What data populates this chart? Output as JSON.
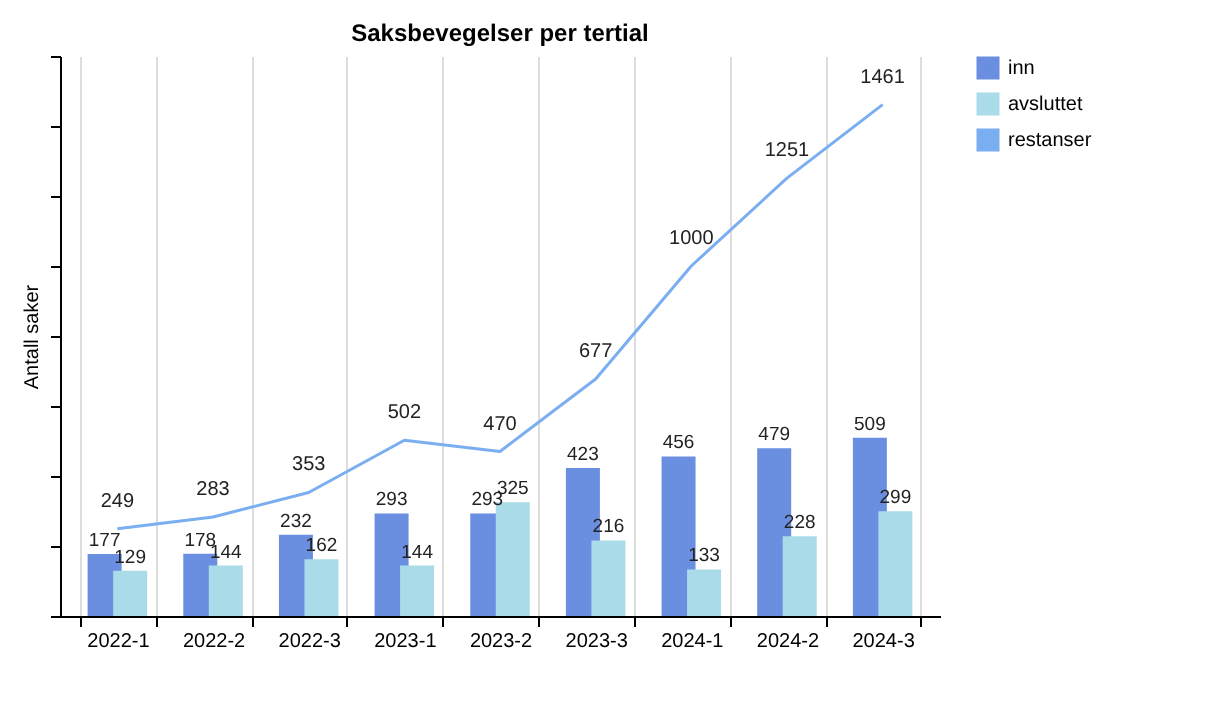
{
  "chart_data": {
    "type": "bar",
    "title": "Saksbevegelser per tertial",
    "ylabel": "Antall saker",
    "categories": [
      "2022-1",
      "2022-2",
      "2022-3",
      "2023-1",
      "2023-2",
      "2023-3",
      "2024-1",
      "2024-2",
      "2024-3"
    ],
    "series": [
      {
        "name": "inn",
        "color": "#6a8ee0",
        "values": [
          177,
          178,
          232,
          293,
          293,
          423,
          456,
          479,
          509
        ]
      },
      {
        "name": "avsluttet",
        "color": "#a9dbe8",
        "values": [
          129,
          144,
          162,
          144,
          325,
          216,
          133,
          228,
          299
        ]
      },
      {
        "name": "restanser",
        "type": "line",
        "color": "#7aaef0",
        "values": [
          249,
          283,
          353,
          502,
          470,
          677,
          1000,
          1251,
          1461
        ]
      }
    ],
    "grid": "x",
    "legend": "top right",
    "data_labels": true
  }
}
